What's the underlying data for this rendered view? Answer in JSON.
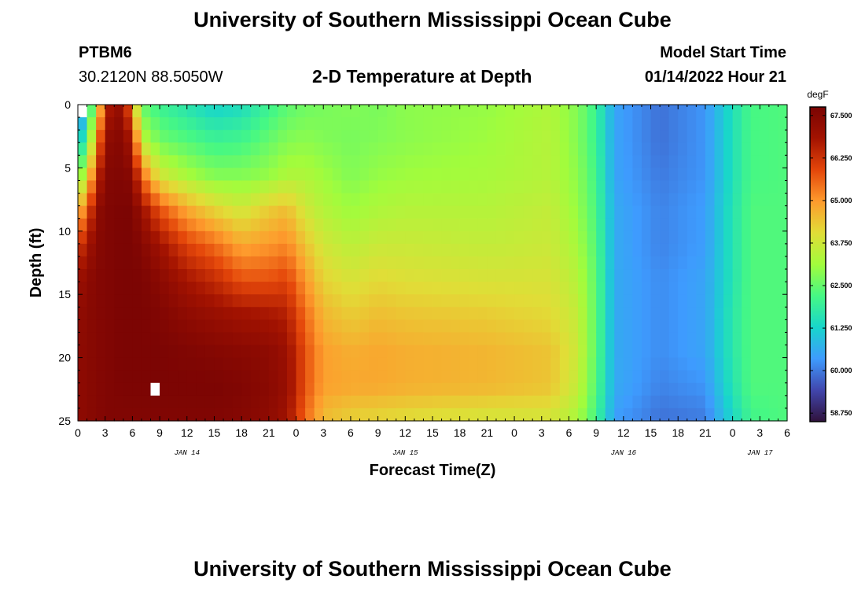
{
  "header": {
    "title_top": "University of Southern Mississippi Ocean Cube",
    "title_bottom": "University of Southern Mississippi Ocean Cube",
    "station": "PTBM6",
    "location": "30.2120N  88.5050W",
    "plot_title": "2-D Temperature at Depth",
    "model_label": "Model Start Time",
    "model_time": "01/14/2022 Hour 21"
  },
  "chart_data": {
    "type": "heatmap",
    "title": "2-D Temperature at Depth",
    "xlabel": "Forecast Time(Z)",
    "ylabel": "Depth (ft)",
    "x_tick_labels": [
      "0",
      "3",
      "6",
      "9",
      "12",
      "15",
      "18",
      "21",
      "0",
      "3",
      "6",
      "9",
      "12",
      "15",
      "18",
      "21",
      "0",
      "3",
      "6",
      "9",
      "12",
      "15",
      "18",
      "21",
      "0",
      "3",
      "6"
    ],
    "x_date_labels": [
      {
        "label": "JAN 14",
        "hour": 12
      },
      {
        "label": "JAN 15",
        "hour": 36
      },
      {
        "label": "JAN 16",
        "hour": 60
      },
      {
        "label": "JAN 17",
        "hour": 75
      }
    ],
    "x_range_hours": [
      0,
      78
    ],
    "y_ticks": [
      "0",
      "5",
      "10",
      "15",
      "20",
      "25"
    ],
    "ylim": [
      0,
      25
    ],
    "colorbar": {
      "unit": "degF",
      "labels": [
        "67.500",
        "66.250",
        "65.000",
        "63.750",
        "62.500",
        "61.250",
        "60.000",
        "58.750"
      ],
      "range": [
        58.5,
        67.75
      ],
      "colors": [
        "#30123b",
        "#4146ad",
        "#3e9bfe",
        "#18d6cb",
        "#46f884",
        "#a2fc3c",
        "#e1dd37",
        "#fe9b2d",
        "#e4460a",
        "#a31301",
        "#7a0403"
      ]
    },
    "series": [
      {
        "profile": "hour, temperature degF from surface (0 ft) to bottom (25 ft)"
      }
    ],
    "columns": [
      {
        "h": 0,
        "t": [
          58.8,
          60.5,
          62.5,
          64.5,
          66,
          67,
          67.2,
          67.3,
          67.3,
          67.3
        ]
      },
      {
        "h": 1,
        "t": [
          61.5,
          62.5,
          63.8,
          65.5,
          66.8,
          67.3,
          67.4,
          67.4,
          67.4,
          67.4
        ]
      },
      {
        "h": 2,
        "t": [
          63,
          64.5,
          66,
          67.2,
          67.4,
          67.5,
          67.5,
          67.5,
          67.5,
          67.5
        ]
      },
      {
        "h": 3,
        "t": [
          66.5,
          67.3,
          67.5,
          67.6,
          67.6,
          67.6,
          67.6,
          67.6,
          67.6,
          67.6
        ]
      },
      {
        "h": 5,
        "t": [
          67.3,
          67.5,
          67.6,
          67.7,
          67.7,
          67.7,
          67.7,
          67.7,
          67.7,
          67.6
        ]
      },
      {
        "h": 6,
        "t": [
          64.8,
          66.5,
          67.4,
          67.7,
          67.7,
          67.7,
          67.7,
          67.7,
          67.7,
          67.6
        ]
      },
      {
        "h": 7,
        "t": [
          62.5,
          63.5,
          65.5,
          67,
          67.5,
          67.7,
          67.7,
          67.7,
          67.7,
          67.6
        ]
      },
      {
        "h": 9,
        "t": [
          62,
          62.6,
          63.8,
          65.8,
          66.9,
          67.4,
          67.6,
          67.7,
          67.7,
          67.6
        ]
      },
      {
        "h": 12,
        "t": [
          61.6,
          62.3,
          63.2,
          64.8,
          66,
          66.8,
          67.3,
          67.6,
          67.7,
          67.6
        ]
      },
      {
        "h": 15,
        "t": [
          61.2,
          62,
          62.8,
          64.2,
          65.5,
          66.4,
          67.1,
          67.5,
          67.7,
          67.6
        ]
      },
      {
        "h": 18,
        "t": [
          61.4,
          62.1,
          62.8,
          63.8,
          64.8,
          65.8,
          66.9,
          67.4,
          67.6,
          67.5
        ]
      },
      {
        "h": 21,
        "t": [
          62,
          62.5,
          63,
          64.3,
          65,
          65.8,
          66.8,
          67.3,
          67.4,
          67.3
        ]
      },
      {
        "h": 23,
        "t": [
          62.4,
          62.8,
          63.3,
          64.5,
          65.2,
          66,
          66.6,
          67,
          67.1,
          66.9
        ]
      },
      {
        "h": 25,
        "t": [
          62.6,
          62.9,
          63.3,
          63.8,
          64.4,
          65,
          65.5,
          65.8,
          65.8,
          65.5
        ]
      },
      {
        "h": 27,
        "t": [
          62.7,
          62.8,
          63.1,
          63.4,
          63.8,
          64.2,
          64.6,
          64.9,
          64.9,
          64.5
        ]
      },
      {
        "h": 30,
        "t": [
          62.8,
          62.7,
          62.8,
          63.1,
          63.5,
          63.9,
          64.3,
          64.7,
          64.8,
          64.2
        ]
      },
      {
        "h": 33,
        "t": [
          62.7,
          62.8,
          63,
          63.3,
          63.7,
          64.1,
          64.5,
          64.8,
          64.8,
          64.1
        ]
      },
      {
        "h": 36,
        "t": [
          62.9,
          62.9,
          63.1,
          63.4,
          63.7,
          64,
          64.4,
          64.7,
          64.7,
          64
        ]
      },
      {
        "h": 45,
        "t": [
          63,
          63.1,
          63.2,
          63.4,
          63.6,
          63.9,
          64.3,
          64.6,
          64.6,
          63.8
        ]
      },
      {
        "h": 52,
        "t": [
          63.3,
          63.4,
          63.4,
          63.6,
          63.7,
          63.9,
          64.1,
          64.4,
          64.4,
          63.8
        ]
      },
      {
        "h": 55,
        "t": [
          62.8,
          62.8,
          62.9,
          63,
          63.2,
          63.4,
          63.6,
          63.7,
          63.6,
          63.2
        ]
      },
      {
        "h": 57,
        "t": [
          62,
          62,
          62.1,
          62.2,
          62.3,
          62.4,
          62.4,
          62.4,
          62.3,
          62.1
        ]
      },
      {
        "h": 59,
        "t": [
          60.5,
          60.5,
          60.5,
          60.6,
          60.6,
          60.6,
          60.6,
          60.6,
          60.6,
          60.4
        ]
      },
      {
        "h": 64,
        "t": [
          59.9,
          59.9,
          60,
          60.1,
          60.1,
          60.2,
          60.2,
          60.2,
          60.1,
          59.9
        ]
      },
      {
        "h": 69,
        "t": [
          60.3,
          60.3,
          60.3,
          60.4,
          60.4,
          60.5,
          60.5,
          60.5,
          60.3,
          60
        ]
      },
      {
        "h": 72,
        "t": [
          61.5,
          61.5,
          61.5,
          61.6,
          61.6,
          61.6,
          61.7,
          61.7,
          61.6,
          61.3
        ]
      },
      {
        "h": 74,
        "t": [
          62.2,
          62.2,
          62.2,
          62.3,
          62.3,
          62.3,
          62.3,
          62.3,
          62.3,
          62.1
        ]
      },
      {
        "h": 78,
        "t": [
          62.3,
          62.3,
          62.3,
          62.3,
          62.3,
          62.3,
          62.3,
          62.3,
          62.3,
          62.3
        ]
      }
    ],
    "missing_cells": [
      {
        "h": 8,
        "depth_ft": 22
      },
      {
        "h": 0,
        "depth_ft": 0
      }
    ]
  }
}
